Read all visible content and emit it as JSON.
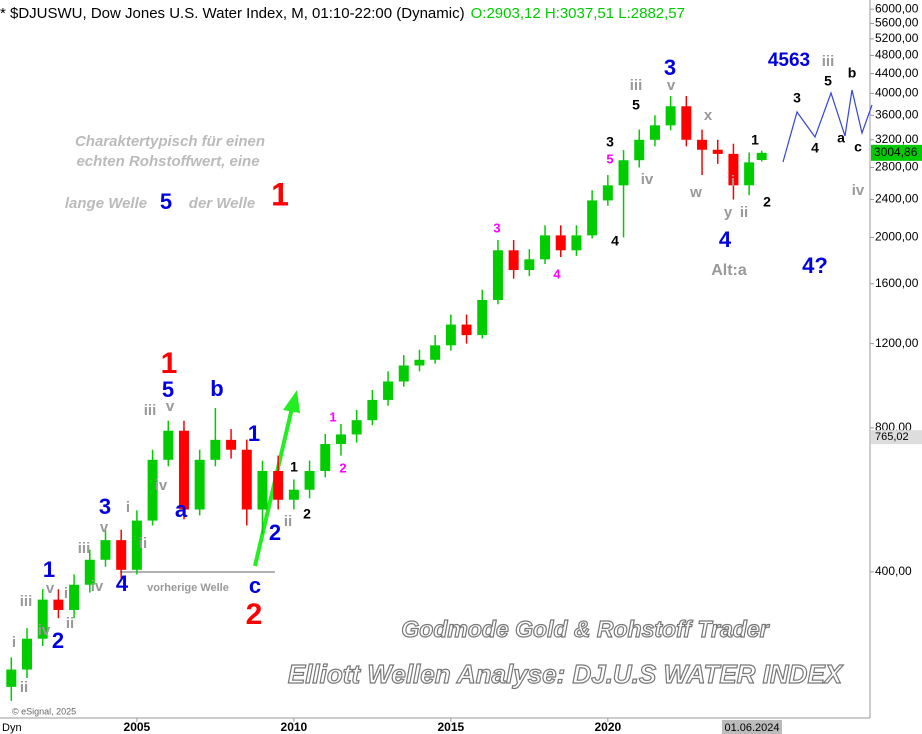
{
  "chart_data": {
    "type": "candlestick",
    "title": "* $DJUSWU, Dow Jones U.S. Water Index, M, 01:10-22:00 (Dynamic)",
    "ohlc_labels": [
      "O:2903,12",
      "H:3037,51",
      "L:2882,57"
    ],
    "ohlc_color": "#00cc00",
    "log_y": true,
    "grid": false,
    "up_color": "#00cc00",
    "down_color": "#ff0000",
    "x": [
      2001,
      2001.5,
      2002,
      2002.5,
      2003,
      2003.5,
      2004,
      2004.5,
      2005,
      2005.5,
      2006,
      2006.5,
      2007,
      2007.5,
      2008,
      2008.5,
      2009,
      2009.5,
      2010,
      2010.5,
      2011,
      2011.5,
      2012,
      2012.5,
      2013,
      2013.5,
      2014,
      2014.5,
      2015,
      2015.5,
      2016,
      2016.5,
      2017,
      2017.5,
      2018,
      2018.5,
      2019,
      2019.5,
      2020,
      2020.5,
      2021,
      2021.5,
      2022,
      2022.5,
      2023,
      2023.5,
      2024,
      2024.5,
      2024.9
    ],
    "open": [
      230,
      250,
      290,
      350,
      333,
      376,
      424,
      466,
      404,
      512,
      686,
      789,
      540,
      686,
      755,
      720,
      540,
      650,
      566,
      594,
      650,
      740,
      775,
      830,
      915,
      1000,
      1080,
      1110,
      1190,
      1315,
      1250,
      1480,
      1880,
      1710,
      1800,
      2020,
      1880,
      2020,
      2390,
      2570,
      2900,
      3200,
      3430,
      3760,
      3200,
      3050,
      2990,
      2570,
      2903.12
    ],
    "high": [
      265,
      305,
      368,
      368,
      395,
      445,
      490,
      490,
      538,
      720,
      828,
      828,
      720,
      880,
      795,
      756,
      683,
      700,
      624,
      683,
      777,
      815,
      872,
      960,
      1050,
      1135,
      1165,
      1250,
      1380,
      1380,
      1555,
      1975,
      1975,
      1890,
      2120,
      2120,
      2120,
      2510,
      2700,
      3045,
      3360,
      3600,
      3950,
      3950,
      3360,
      3200,
      3140,
      3010,
      3037.51
    ],
    "low": [
      215,
      240,
      280,
      320,
      320,
      362,
      410,
      388,
      395,
      500,
      665,
      515,
      525,
      665,
      690,
      500,
      480,
      540,
      540,
      570,
      630,
      700,
      745,
      810,
      890,
      975,
      1050,
      1090,
      1160,
      1200,
      1230,
      1450,
      1640,
      1660,
      1760,
      1820,
      1830,
      1990,
      2330,
      2000,
      2800,
      3100,
      3350,
      3100,
      2700,
      2850,
      2400,
      2450,
      2882.57
    ],
    "close": [
      250,
      290,
      350,
      333,
      376,
      424,
      466,
      404,
      512,
      686,
      789,
      540,
      686,
      755,
      720,
      540,
      650,
      566,
      594,
      650,
      740,
      775,
      830,
      915,
      1000,
      1080,
      1110,
      1190,
      1315,
      1250,
      1480,
      1880,
      1710,
      1800,
      2020,
      1880,
      2020,
      2390,
      2570,
      2900,
      3200,
      3430,
      3760,
      3200,
      3050,
      2990,
      2570,
      2870,
      3004.86
    ],
    "last_price_label": "3004,86",
    "reference_level": {
      "value": 765.02,
      "label": "765,02"
    },
    "xlim": [
      2000.64,
      2028.35
    ],
    "xticks": [
      2005,
      2010,
      2015,
      2020
    ],
    "ylim": [
      198,
      6270
    ],
    "yticks": [
      {
        "value": 400,
        "label": "400,00"
      },
      {
        "value": 800,
        "label": "800,00"
      },
      {
        "value": 1200,
        "label": "1200,00"
      },
      {
        "value": 1600,
        "label": "1600,00"
      },
      {
        "value": 2000,
        "label": "2000,00"
      },
      {
        "value": 2400,
        "label": "2400,00"
      },
      {
        "value": 2800,
        "label": "2800,00"
      },
      {
        "value": 3200,
        "label": "3200,00"
      },
      {
        "value": 3600,
        "label": "3600,00"
      },
      {
        "value": 4000,
        "label": "4000,00"
      },
      {
        "value": 4400,
        "label": "4400,00"
      },
      {
        "value": 4800,
        "label": "4800,00"
      },
      {
        "value": 5200,
        "label": "5200,00"
      },
      {
        "value": 5600,
        "label": "5600,00"
      },
      {
        "value": 6000,
        "label": "6000,00"
      }
    ],
    "x_start_label": "Dyn",
    "cursor_date": "01.06.2024",
    "copyright": "© eSignal, 2025",
    "annotations": [
      {
        "text": "i",
        "color": "#999999"
      },
      {
        "text": "ii",
        "color": "#999999"
      },
      {
        "text": "iii",
        "color": "#999999"
      },
      {
        "text": "iv",
        "color": "#999999"
      },
      {
        "text": "v",
        "color": "#999999"
      },
      {
        "text": "i",
        "color": "#999999"
      },
      {
        "text": "ii",
        "color": "#999999"
      },
      {
        "text": "iii",
        "color": "#999999"
      },
      {
        "text": "iv",
        "color": "#999999"
      },
      {
        "text": "v",
        "color": "#999999"
      },
      {
        "text": "i",
        "color": "#999999"
      },
      {
        "text": "ii",
        "color": "#999999"
      },
      {
        "text": "iii",
        "color": "#999999"
      },
      {
        "text": "v",
        "color": "#999999"
      },
      {
        "text": "iv",
        "color": "#999999"
      },
      {
        "text": "ii",
        "color": "#999999"
      },
      {
        "text": "iii",
        "color": "#999999"
      },
      {
        "text": "v",
        "color": "#999999"
      },
      {
        "text": "iv",
        "color": "#999999"
      },
      {
        "text": "x",
        "color": "#999999"
      },
      {
        "text": "w",
        "color": "#999999"
      },
      {
        "text": "i",
        "color": "#999999"
      },
      {
        "text": "y",
        "color": "#999999"
      },
      {
        "text": "ii",
        "color": "#999999"
      },
      {
        "text": "iii",
        "color": "#999999"
      },
      {
        "text": "iv",
        "color": "#999999"
      },
      {
        "text": "Alt:a",
        "color": "#999999"
      },
      {
        "text": "vorherige Welle",
        "color": "#999999"
      },
      {
        "text": "1",
        "color": "#0000e0"
      },
      {
        "text": "2",
        "color": "#0000e0"
      },
      {
        "text": "3",
        "color": "#0000e0"
      },
      {
        "text": "4",
        "color": "#0000e0"
      },
      {
        "text": "5",
        "color": "#0000e0"
      },
      {
        "text": "b",
        "color": "#0000e0"
      },
      {
        "text": "a",
        "color": "#0000e0"
      },
      {
        "text": "1",
        "color": "#0000e0"
      },
      {
        "text": "2",
        "color": "#0000e0"
      },
      {
        "text": "c",
        "color": "#0000e0"
      },
      {
        "text": "3",
        "color": "#0000e0"
      },
      {
        "text": "4",
        "color": "#0000e0"
      },
      {
        "text": "4563",
        "color": "#0000e0"
      },
      {
        "text": "4?",
        "color": "#0000e0"
      },
      {
        "text": "1",
        "color": "#ff0000"
      },
      {
        "text": "2",
        "color": "#ff0000"
      },
      {
        "text": "1",
        "color": "#000000"
      },
      {
        "text": "2",
        "color": "#000000"
      },
      {
        "text": "3",
        "color": "#000000"
      },
      {
        "text": "5",
        "color": "#000000"
      },
      {
        "text": "4",
        "color": "#000000"
      },
      {
        "text": "1",
        "color": "#000000"
      },
      {
        "text": "2",
        "color": "#000000"
      },
      {
        "text": "3",
        "color": "#000000"
      },
      {
        "text": "5",
        "color": "#000000"
      },
      {
        "text": "b",
        "color": "#000000"
      },
      {
        "text": "4",
        "color": "#000000"
      },
      {
        "text": "a",
        "color": "#000000"
      },
      {
        "text": "c",
        "color": "#000000"
      },
      {
        "text": "5",
        "color": "#ff00ff"
      },
      {
        "text": "3",
        "color": "#ff00ff"
      },
      {
        "text": "4",
        "color": "#ff00ff"
      },
      {
        "text": "1",
        "color": "#ff00ff"
      },
      {
        "text": "2",
        "color": "#ff00ff"
      },
      {
        "text": "Charaktertypisch für einen",
        "color": "#bbbbbb"
      },
      {
        "text": "echten Rohstoffwert, eine",
        "color": "#bbbbbb"
      },
      {
        "text": "lange Welle",
        "color": "#bbbbbb"
      },
      {
        "text": "5",
        "color": "#0000e0"
      },
      {
        "text": "der Welle",
        "color": "#bbbbbb"
      },
      {
        "text": "1",
        "color": "#ff0000"
      },
      {
        "text": "Godmode Gold & Rohstoff Trader",
        "color": "#ffffff"
      },
      {
        "text": "Elliott Wellen Analyse: DJ.U.S WATER INDEX",
        "color": "#ffffff"
      }
    ]
  }
}
